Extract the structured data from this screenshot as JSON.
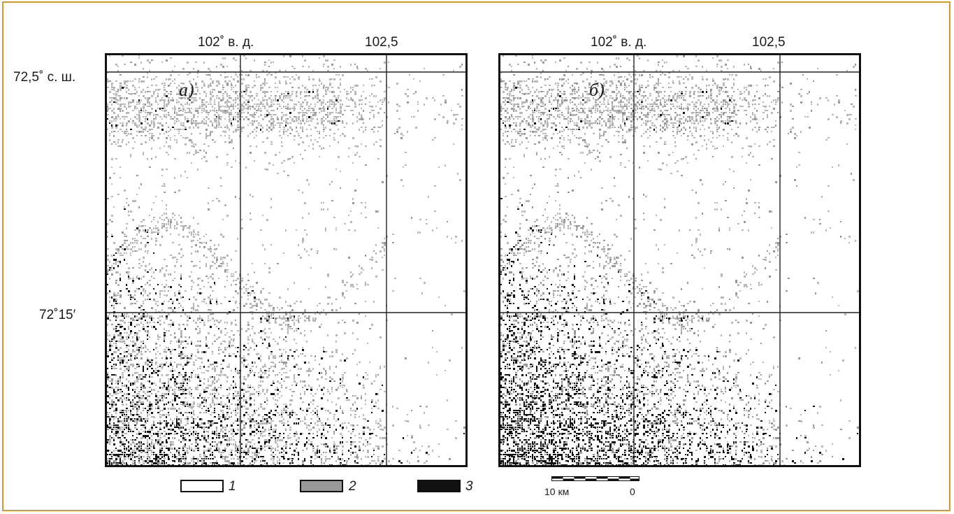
{
  "colors": {
    "frame_border": "#d99a2b",
    "class_1": "#ffffff",
    "class_2": "#999999",
    "class_3": "#111111"
  },
  "panels": [
    {
      "letter": "а)",
      "lon_label_1": "102˚ в. д.",
      "lon_label_2": "102,5",
      "lat_label_top": "72,5˚ с. ш.",
      "lat_label_mid": "72˚15′",
      "dark_level": 0.45,
      "gray_level": 0.25
    },
    {
      "letter": "б)",
      "lon_label_1": "102˚ в. д.",
      "lon_label_2": "102,5",
      "dark_level": 0.75,
      "gray_level": 0.55
    }
  ],
  "legend": {
    "items": [
      {
        "label": "1",
        "color": "#ffffff"
      },
      {
        "label": "2",
        "color": "#999999"
      },
      {
        "label": "3",
        "color": "#111111"
      }
    ]
  },
  "scale_bar": {
    "left_label": "10 км",
    "right_label": "0"
  }
}
